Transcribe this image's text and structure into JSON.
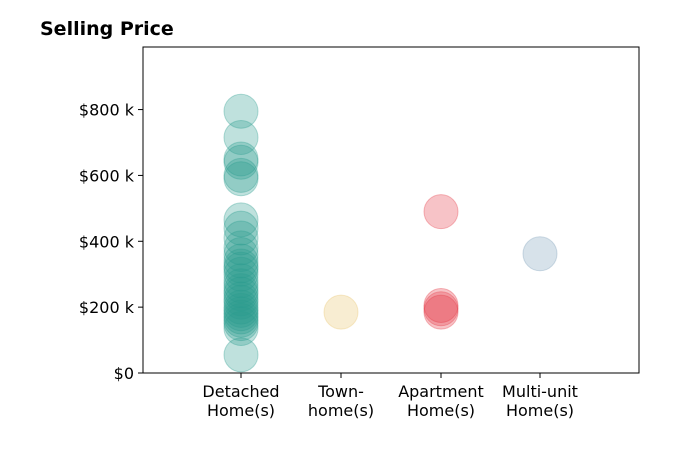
{
  "chart_data": {
    "type": "scatter",
    "title": "Selling Price",
    "xlabel": "",
    "ylabel": "",
    "categories": [
      [
        "Detached",
        "Home(s)"
      ],
      [
        "Town-",
        "home(s)"
      ],
      [
        "Apartment",
        "Home(s)"
      ],
      [
        "Multi-unit",
        "Home(s)"
      ]
    ],
    "ylim": [
      0,
      990000
    ],
    "yticks": [
      {
        "value": 0,
        "label": "$0"
      },
      {
        "value": 200000,
        "label": "$200 k"
      },
      {
        "value": 400000,
        "label": "$400 k"
      },
      {
        "value": 600000,
        "label": "$600 k"
      },
      {
        "value": 800000,
        "label": "$800 k"
      }
    ],
    "grid": false,
    "legend": "none",
    "series": [
      {
        "category": "Detached Home(s)",
        "color": "#2a9d8f",
        "values": [
          795000,
          715000,
          650000,
          640000,
          600000,
          590000,
          465000,
          440000,
          410000,
          380000,
          360000,
          340000,
          325000,
          315000,
          300000,
          280000,
          265000,
          250000,
          240000,
          225000,
          215000,
          200000,
          190000,
          180000,
          170000,
          160000,
          150000,
          135000,
          55000
        ]
      },
      {
        "category": "Town-home(s)",
        "color": "#e9c46a",
        "values": [
          185000
        ]
      },
      {
        "category": "Apartment Home(s)",
        "color": "#e63946",
        "values": [
          490000,
          205000,
          195000,
          185000
        ]
      },
      {
        "category": "Multi-unit Home(s)",
        "color": "#7b9eb8",
        "values": [
          362000
        ]
      }
    ]
  }
}
